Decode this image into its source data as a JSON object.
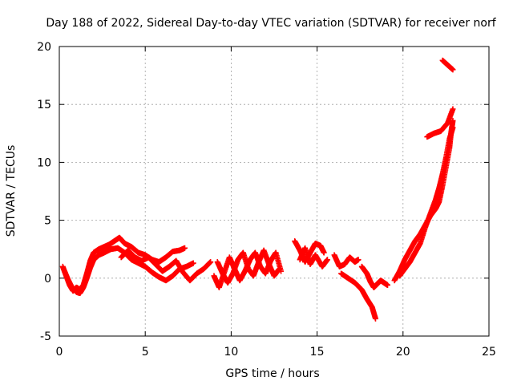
{
  "chart_data": {
    "type": "scatter",
    "title": "Day 188 of 2022, Sidereal Day-to-day VTEC variation (SDTVAR) for receiver norf",
    "xlabel": "GPS time / hours",
    "ylabel": "SDTVAR / TECUs",
    "xlim": [
      0,
      25
    ],
    "ylim": [
      -5,
      20
    ],
    "xticks": [
      0,
      5,
      10,
      15,
      20,
      25
    ],
    "yticks": [
      -5,
      0,
      5,
      10,
      15,
      20
    ],
    "grid": true,
    "marker": "+",
    "color": "#ff0000",
    "series": [
      {
        "name": "SDTVAR",
        "tracks": [
          [
            [
              0.2,
              1.0
            ],
            [
              0.4,
              0.2
            ],
            [
              0.6,
              -0.6
            ],
            [
              0.8,
              -1.1
            ],
            [
              1.0,
              -0.8
            ],
            [
              1.2,
              -1.0
            ],
            [
              1.4,
              -0.6
            ],
            [
              1.6,
              0.4
            ],
            [
              1.8,
              1.5
            ],
            [
              2.0,
              2.2
            ],
            [
              2.3,
              2.5
            ],
            [
              2.6,
              2.7
            ],
            [
              2.9,
              2.9
            ],
            [
              3.2,
              3.2
            ],
            [
              3.5,
              3.5
            ],
            [
              3.8,
              3.0
            ],
            [
              4.2,
              2.7
            ],
            [
              4.6,
              2.2
            ],
            [
              5.0,
              2.0
            ],
            [
              5.4,
              1.6
            ],
            [
              5.8,
              1.4
            ],
            [
              6.2,
              1.8
            ],
            [
              6.6,
              2.3
            ],
            [
              7.0,
              2.4
            ],
            [
              7.3,
              2.6
            ]
          ],
          [
            [
              0.3,
              0.6
            ],
            [
              0.5,
              -0.1
            ],
            [
              0.7,
              -0.7
            ],
            [
              1.0,
              -1.2
            ],
            [
              1.2,
              -1.3
            ],
            [
              1.4,
              -0.8
            ],
            [
              1.6,
              0.0
            ],
            [
              1.8,
              0.9
            ],
            [
              2.0,
              1.6
            ],
            [
              2.3,
              2.0
            ],
            [
              2.6,
              2.2
            ],
            [
              3.0,
              2.5
            ],
            [
              3.4,
              2.6
            ],
            [
              3.8,
              2.2
            ],
            [
              4.2,
              1.6
            ],
            [
              4.6,
              1.3
            ],
            [
              5.0,
              1.0
            ],
            [
              5.4,
              0.5
            ],
            [
              5.8,
              0.1
            ],
            [
              6.2,
              -0.2
            ],
            [
              6.6,
              0.2
            ],
            [
              7.0,
              0.8
            ],
            [
              7.4,
              1.0
            ],
            [
              7.8,
              1.3
            ]
          ],
          [
            [
              3.6,
              1.8
            ],
            [
              4.0,
              2.4
            ],
            [
              4.4,
              1.8
            ],
            [
              4.8,
              1.5
            ],
            [
              5.2,
              1.8
            ],
            [
              5.6,
              1.2
            ],
            [
              6.0,
              0.6
            ],
            [
              6.4,
              1.0
            ],
            [
              6.8,
              1.5
            ],
            [
              7.2,
              0.5
            ],
            [
              7.6,
              -0.2
            ],
            [
              8.0,
              0.4
            ],
            [
              8.4,
              0.8
            ],
            [
              8.8,
              1.4
            ]
          ],
          [
            [
              9.0,
              0.2
            ],
            [
              9.3,
              -0.8
            ],
            [
              9.6,
              0.5
            ],
            [
              9.9,
              1.8
            ],
            [
              10.2,
              0.8
            ],
            [
              10.5,
              -0.2
            ],
            [
              10.8,
              0.6
            ],
            [
              11.1,
              1.6
            ],
            [
              11.4,
              2.2
            ],
            [
              11.7,
              1.0
            ],
            [
              12.0,
              0.4
            ],
            [
              12.3,
              1.5
            ],
            [
              12.6,
              2.2
            ],
            [
              12.9,
              0.6
            ]
          ],
          [
            [
              9.2,
              1.4
            ],
            [
              9.5,
              0.4
            ],
            [
              9.8,
              -0.4
            ],
            [
              10.1,
              0.4
            ],
            [
              10.4,
              1.6
            ],
            [
              10.7,
              2.2
            ],
            [
              11.0,
              0.8
            ],
            [
              11.3,
              0.2
            ],
            [
              11.6,
              1.4
            ],
            [
              11.9,
              2.4
            ],
            [
              12.2,
              1.2
            ],
            [
              12.5,
              0.2
            ],
            [
              12.8,
              0.8
            ]
          ],
          [
            [
              13.7,
              3.2
            ],
            [
              14.0,
              2.4
            ],
            [
              14.3,
              1.4
            ],
            [
              14.6,
              2.2
            ],
            [
              14.9,
              3.0
            ],
            [
              15.2,
              2.8
            ],
            [
              15.4,
              2.2
            ]
          ],
          [
            [
              14.0,
              1.6
            ],
            [
              14.3,
              2.6
            ],
            [
              14.6,
              1.2
            ],
            [
              14.9,
              2.0
            ],
            [
              15.3,
              1.0
            ],
            [
              15.6,
              1.6
            ]
          ],
          [
            [
              16.0,
              2.0
            ],
            [
              16.3,
              1.0
            ],
            [
              16.6,
              1.2
            ],
            [
              16.9,
              1.8
            ],
            [
              17.2,
              1.4
            ],
            [
              17.4,
              1.6
            ]
          ],
          [
            [
              16.4,
              0.4
            ],
            [
              16.8,
              0.0
            ],
            [
              17.2,
              -0.4
            ],
            [
              17.6,
              -1.0
            ],
            [
              17.9,
              -1.8
            ],
            [
              18.2,
              -2.5
            ],
            [
              18.4,
              -3.5
            ]
          ],
          [
            [
              17.6,
              1.0
            ],
            [
              17.9,
              0.4
            ],
            [
              18.1,
              -0.3
            ],
            [
              18.3,
              -0.8
            ],
            [
              18.5,
              -0.5
            ],
            [
              18.7,
              -0.2
            ],
            [
              18.9,
              -0.4
            ],
            [
              19.1,
              -0.6
            ]
          ],
          [
            [
              19.5,
              -0.2
            ],
            [
              19.8,
              0.6
            ],
            [
              20.1,
              1.6
            ],
            [
              20.4,
              2.4
            ],
            [
              20.7,
              3.2
            ],
            [
              21.0,
              3.8
            ],
            [
              21.3,
              4.6
            ],
            [
              21.6,
              5.4
            ],
            [
              21.9,
              6.0
            ],
            [
              22.1,
              6.6
            ],
            [
              22.3,
              8.0
            ],
            [
              22.5,
              9.6
            ],
            [
              22.7,
              11.2
            ],
            [
              22.8,
              12.6
            ],
            [
              22.9,
              13.6
            ]
          ],
          [
            [
              19.8,
              0.2
            ],
            [
              20.1,
              0.8
            ],
            [
              20.4,
              1.4
            ],
            [
              20.7,
              2.2
            ],
            [
              21.0,
              3.0
            ],
            [
              21.3,
              4.4
            ],
            [
              21.6,
              5.6
            ],
            [
              21.9,
              6.8
            ],
            [
              22.1,
              7.8
            ],
            [
              22.3,
              9.0
            ],
            [
              22.5,
              10.4
            ],
            [
              22.7,
              12.0
            ],
            [
              22.9,
              13.0
            ]
          ],
          [
            [
              21.4,
              12.2
            ],
            [
              21.8,
              12.5
            ],
            [
              22.2,
              12.7
            ],
            [
              22.6,
              13.4
            ],
            [
              22.9,
              14.6
            ]
          ],
          [
            [
              22.3,
              18.8
            ],
            [
              22.6,
              18.4
            ],
            [
              22.9,
              18.0
            ]
          ]
        ]
      }
    ]
  }
}
